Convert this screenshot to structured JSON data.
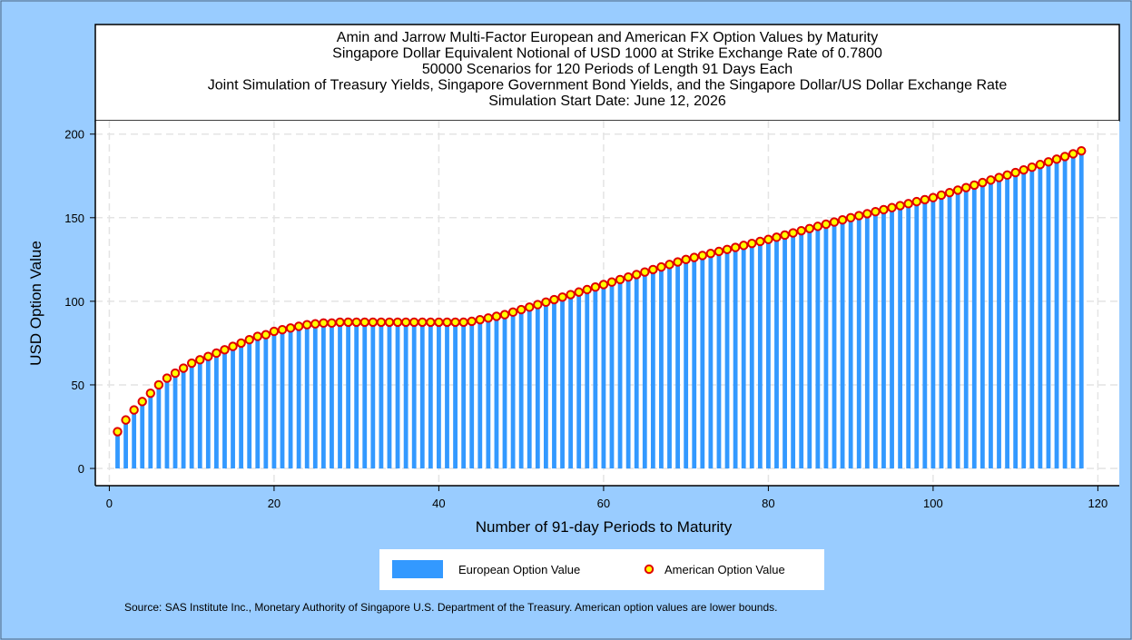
{
  "chart_data": {
    "type": "bar",
    "title": [
      "Amin and Jarrow Multi-Factor European and American FX Option Values by Maturity",
      "Singapore Dollar Equivalent Notional of USD 1000 at Strike Exchange Rate of  0.7800",
      "50000 Scenarios for 120 Periods of Length 91 Days Each",
      "Joint Simulation of Treasury Yields, Singapore Government Bond Yields, and the Singapore Dollar/US Dollar Exchange Rate",
      "Simulation Start Date: June 12, 2026"
    ],
    "x_label": "Number of 91-day Periods to Maturity",
    "y_label": "USD Option Value",
    "source": "Source: SAS Institute Inc., Monetary Authority of Singapore U.S. Department of the Treasury. American option values are lower bounds.",
    "x": [
      1,
      2,
      3,
      4,
      5,
      6,
      7,
      8,
      9,
      10,
      11,
      12,
      13,
      14,
      15,
      16,
      17,
      18,
      19,
      20,
      21,
      22,
      23,
      24,
      25,
      26,
      27,
      28,
      29,
      30,
      31,
      32,
      33,
      34,
      35,
      36,
      37,
      38,
      39,
      40,
      41,
      42,
      43,
      44,
      45,
      46,
      47,
      48,
      49,
      50,
      51,
      52,
      53,
      54,
      55,
      56,
      57,
      58,
      59,
      60,
      61,
      62,
      63,
      64,
      65,
      66,
      67,
      68,
      69,
      70,
      71,
      72,
      73,
      74,
      75,
      76,
      77,
      78,
      79,
      80,
      81,
      82,
      83,
      84,
      85,
      86,
      87,
      88,
      89,
      90,
      91,
      92,
      93,
      94,
      95,
      96,
      97,
      98,
      99,
      100,
      101,
      102,
      103,
      104,
      105,
      106,
      107,
      108,
      109,
      110,
      111,
      112,
      113,
      114,
      115,
      116,
      117,
      118
    ],
    "series": [
      {
        "name": "European Option Value",
        "type": "bar",
        "color": "#3399ff",
        "values": [
          22,
          29,
          35,
          40,
          45,
          50,
          54,
          57,
          60,
          63,
          65,
          67,
          69,
          71,
          73,
          75,
          77,
          79,
          80,
          82,
          83,
          84,
          85,
          86,
          86.5,
          87,
          87,
          87.5,
          87.5,
          87.5,
          87.5,
          87.5,
          87.5,
          87.5,
          87.5,
          87.5,
          87.5,
          87.5,
          87.5,
          87.5,
          87.5,
          87.5,
          87.5,
          88,
          89,
          90,
          91,
          92,
          93.5,
          95,
          96.5,
          98,
          99.5,
          101,
          102.5,
          104,
          105.5,
          107,
          108.5,
          110,
          111.5,
          113,
          114.5,
          116,
          117.5,
          119,
          120.5,
          122,
          123.5,
          125,
          126.2,
          127.4,
          128.6,
          129.8,
          131,
          132.2,
          133.4,
          134.6,
          135.8,
          137,
          138.3,
          139.6,
          140.9,
          142.2,
          143.5,
          144.8,
          146.1,
          147.4,
          148.7,
          150,
          151.2,
          152.4,
          153.6,
          154.8,
          156,
          157.2,
          158.4,
          159.6,
          160.8,
          162,
          163.5,
          165,
          166.5,
          168,
          169.5,
          171,
          172.5,
          174,
          175.5,
          177,
          178.6,
          180.2,
          181.8,
          183.4,
          185,
          186.6,
          188.2,
          190
        ]
      },
      {
        "name": "American Option Value",
        "type": "scatter",
        "color": "#ffff00",
        "edge_color": "#e00000",
        "values": [
          22,
          29,
          35,
          40,
          45,
          50,
          54,
          57,
          60,
          63,
          65,
          67,
          69,
          71,
          73,
          75,
          77,
          79,
          80,
          82,
          83,
          84,
          85,
          86,
          86.5,
          87,
          87,
          87.5,
          87.5,
          87.5,
          87.5,
          87.5,
          87.5,
          87.5,
          87.5,
          87.5,
          87.5,
          87.5,
          87.5,
          87.5,
          87.5,
          87.5,
          87.5,
          88,
          89,
          90,
          91,
          92,
          93.5,
          95,
          96.5,
          98,
          99.5,
          101,
          102.5,
          104,
          105.5,
          107,
          108.5,
          110,
          111.5,
          113,
          114.5,
          116,
          117.5,
          119,
          120.5,
          122,
          123.5,
          125,
          126.2,
          127.4,
          128.6,
          129.8,
          131,
          132.2,
          133.4,
          134.6,
          135.8,
          137,
          138.3,
          139.6,
          140.9,
          142.2,
          143.5,
          144.8,
          146.1,
          147.4,
          148.7,
          150,
          151.2,
          152.4,
          153.6,
          154.8,
          156,
          157.2,
          158.4,
          159.6,
          160.8,
          162,
          163.5,
          165,
          166.5,
          168,
          169.5,
          171,
          172.5,
          174,
          175.5,
          177,
          178.6,
          180.2,
          181.8,
          183.4,
          185,
          186.6,
          188.2,
          190
        ]
      }
    ],
    "xlim": [
      -1.7,
      122.6
    ],
    "ylim": [
      -10.3,
      208
    ],
    "xticks": [
      0,
      20,
      40,
      60,
      80,
      100,
      120
    ],
    "yticks": [
      0,
      50,
      100,
      150,
      200
    ],
    "grid": true,
    "legend": "bottom"
  }
}
